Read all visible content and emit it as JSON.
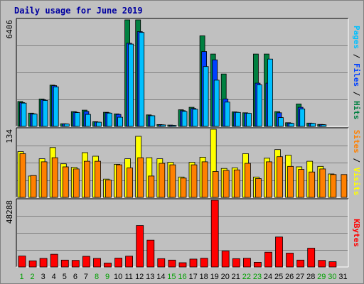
{
  "title": "Daily usage for June 2019",
  "colors": {
    "pages": "#00c0ff",
    "files": "#0040ff",
    "hits": "#008040",
    "sites": "#ff8000",
    "visits": "#ffff00",
    "kbytes": "#ff0000",
    "weekend_day": "#00a000",
    "weekday": "#000000"
  },
  "legends": {
    "top": [
      {
        "text": "Pages",
        "color": "#00c0ff"
      },
      {
        "text": " / ",
        "color": "#000000"
      },
      {
        "text": "Files",
        "color": "#0040ff"
      },
      {
        "text": " / ",
        "color": "#000000"
      },
      {
        "text": "Hits",
        "color": "#008040"
      }
    ],
    "middle": [
      {
        "text": "Sites",
        "color": "#ff8000"
      },
      {
        "text": " / ",
        "color": "#000000"
      },
      {
        "text": "Visits",
        "color": "#ffff00"
      }
    ],
    "bottom": [
      {
        "text": "KBytes",
        "color": "#ff0000"
      }
    ]
  },
  "chart_data": [
    {
      "type": "bar",
      "panel": "hits-files-pages",
      "ymax_label": "6406",
      "ylim": [
        0,
        6406
      ],
      "categories": [
        "1",
        "2",
        "3",
        "4",
        "5",
        "6",
        "7",
        "8",
        "9",
        "10",
        "11",
        "12",
        "13",
        "14",
        "15",
        "16",
        "17",
        "18",
        "19",
        "20",
        "21",
        "22",
        "23",
        "24",
        "25",
        "26",
        "27",
        "28",
        "29",
        "30",
        "31"
      ],
      "weekend_days": [
        "1",
        "2",
        "8",
        "9",
        "15",
        "16",
        "22",
        "23",
        "29",
        "30"
      ],
      "series": [
        {
          "name": "Hits",
          "values": [
            1500,
            800,
            1650,
            2480,
            160,
            890,
            980,
            280,
            850,
            750,
            6406,
            6406,
            690,
            110,
            80,
            1000,
            1150,
            5450,
            4350,
            3150,
            870,
            820,
            4350,
            4350,
            890,
            220,
            1350,
            200,
            120,
            0,
            0
          ]
        },
        {
          "name": "Files",
          "values": [
            1430,
            760,
            1600,
            2450,
            150,
            850,
            900,
            260,
            820,
            720,
            5000,
            5700,
            650,
            100,
            70,
            950,
            1080,
            4500,
            4000,
            1650,
            850,
            800,
            2600,
            2600,
            820,
            200,
            1150,
            190,
            110,
            0,
            0
          ]
        },
        {
          "name": "Pages",
          "values": [
            1400,
            740,
            1560,
            2380,
            140,
            830,
            720,
            250,
            800,
            550,
            4950,
            5650,
            640,
            90,
            60,
            900,
            1030,
            3600,
            2780,
            1460,
            840,
            790,
            2500,
            4050,
            530,
            180,
            1050,
            180,
            100,
            0,
            0
          ]
        }
      ]
    },
    {
      "type": "bar",
      "panel": "visits-sites",
      "ymax_label": "134",
      "ylim": [
        0,
        134
      ],
      "categories": [
        "1",
        "2",
        "3",
        "4",
        "5",
        "6",
        "7",
        "8",
        "9",
        "10",
        "11",
        "12",
        "13",
        "14",
        "15",
        "16",
        "17",
        "18",
        "19",
        "20",
        "21",
        "22",
        "23",
        "24",
        "25",
        "26",
        "27",
        "28",
        "29",
        "30",
        "31"
      ],
      "series": [
        {
          "name": "Visits",
          "values": [
            90,
            42,
            76,
            98,
            66,
            59,
            88,
            81,
            36,
            65,
            76,
            120,
            78,
            76,
            69,
            40,
            69,
            79,
            134,
            57,
            58,
            86,
            40,
            77,
            94,
            83,
            60,
            71,
            61,
            46,
            0
          ]
        },
        {
          "name": "Sites",
          "values": [
            86,
            43,
            70,
            78,
            60,
            56,
            71,
            71,
            34,
            64,
            58,
            78,
            42,
            67,
            64,
            38,
            64,
            70,
            51,
            53,
            54,
            67,
            37,
            70,
            80,
            61,
            55,
            50,
            56,
            45,
            45
          ]
        }
      ]
    },
    {
      "type": "bar",
      "panel": "kbytes",
      "ymax_label": "48288",
      "ylim": [
        0,
        48288
      ],
      "categories": [
        "1",
        "2",
        "3",
        "4",
        "5",
        "6",
        "7",
        "8",
        "9",
        "10",
        "11",
        "12",
        "13",
        "14",
        "15",
        "16",
        "17",
        "18",
        "19",
        "20",
        "21",
        "22",
        "23",
        "24",
        "25",
        "26",
        "27",
        "28",
        "29",
        "30",
        "31"
      ],
      "series": [
        {
          "name": "KBytes",
          "values": [
            7900,
            4400,
            6200,
            9200,
            5000,
            4800,
            7700,
            6200,
            2800,
            6400,
            7800,
            30000,
            19400,
            6000,
            5000,
            3100,
            5700,
            6300,
            48288,
            11500,
            6000,
            6300,
            3400,
            10700,
            21700,
            10000,
            5000,
            13600,
            4800,
            3800,
            0
          ]
        }
      ]
    }
  ]
}
